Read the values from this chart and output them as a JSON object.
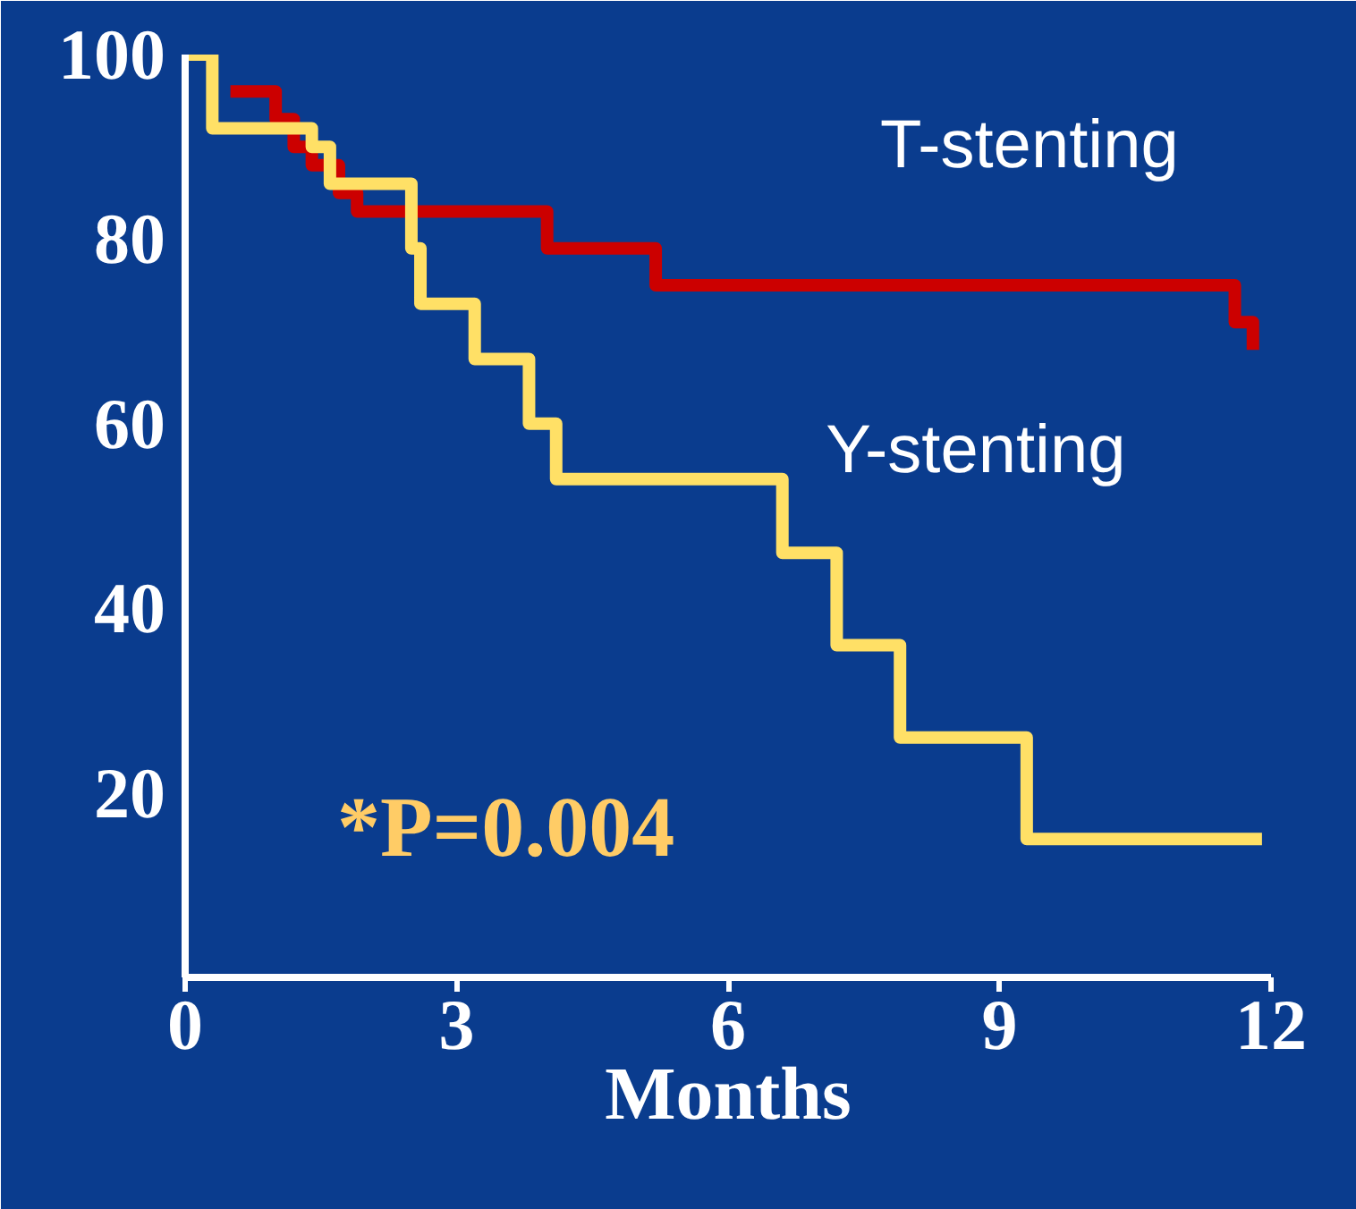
{
  "chart_data": {
    "type": "step",
    "xlabel": "Months",
    "xlim": [
      0,
      12
    ],
    "ylim": [
      0,
      100
    ],
    "xticks": [
      0,
      3,
      6,
      9,
      12
    ],
    "yticks": [
      20,
      40,
      60,
      80,
      100
    ],
    "grid": false,
    "line_style": "solid",
    "marker": "none",
    "series": [
      {
        "name": "T-stenting",
        "color": "#cc0000",
        "x": [
          0.5,
          1.0,
          1.2,
          1.4,
          1.7,
          1.9,
          4.0,
          5.2,
          11.6,
          11.8
        ],
        "values": [
          96,
          93,
          90,
          88,
          85,
          83,
          79,
          75,
          71,
          68
        ]
      },
      {
        "name": "Y-stenting",
        "color": "#ffe066",
        "x": [
          0,
          0.3,
          1.4,
          1.6,
          2.5,
          2.6,
          3.2,
          3.8,
          4.1,
          6.6,
          7.2,
          7.9,
          9.3,
          11.9
        ],
        "values": [
          100,
          92,
          90,
          86,
          79,
          73,
          67,
          60,
          54,
          46,
          36,
          26,
          15,
          15
        ]
      }
    ],
    "annotations": [
      "*P=0.004"
    ]
  }
}
